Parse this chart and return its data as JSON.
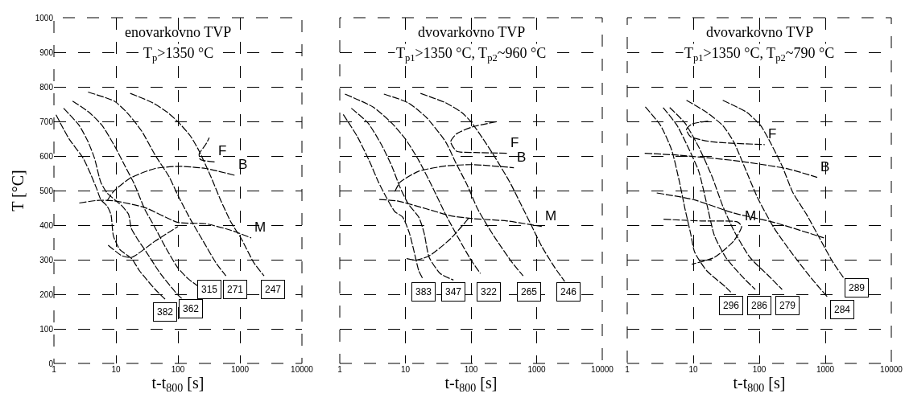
{
  "chart_data": [
    {
      "type": "line",
      "title": "enovarkovno TVP",
      "subtitle": "T$_{p}$>1350 °C",
      "xlabel": "t-t$_{800}$ [s]",
      "ylabel": "T [°C]",
      "log": "x",
      "grid": true,
      "line_style": "dashed",
      "color": "#000000",
      "xlim": [
        1,
        10000
      ],
      "ylim": [
        0,
        1000
      ],
      "xticks": [
        1,
        10,
        100,
        1000,
        10000
      ],
      "yticks": [
        0,
        100,
        200,
        300,
        400,
        500,
        600,
        700,
        800,
        900,
        1000
      ],
      "series": [
        {
          "x": [
            1.08,
            1.76,
            2.95,
            3.9,
            4.9,
            5.7,
            7.2,
            8.3,
            9.1,
            11.5,
            18,
            24,
            43,
            62
          ],
          "values": [
            719,
            649,
            594,
            548,
            505,
            474,
            455,
            431,
            369,
            330,
            303,
            268,
            214,
            186
          ]
        },
        {
          "x": [
            1.43,
            2.56,
            3.55,
            4.5,
            5.7,
            7.2,
            9.5,
            12.6,
            16,
            17.6,
            22,
            31,
            52,
            100,
            115
          ],
          "values": [
            738,
            688,
            641,
            594,
            524,
            493,
            474,
            455,
            431,
            392,
            361,
            322,
            260,
            198,
            188
          ]
        },
        {
          "x": [
            2,
            3.7,
            6,
            9.5,
            14,
            20,
            29,
            43,
            62,
            100,
            146,
            220
          ],
          "values": [
            759,
            726,
            688,
            629,
            571,
            517,
            447,
            392,
            338,
            276,
            245,
            221
          ]
        },
        {
          "x": [
            3.55,
            9.5,
            15,
            26,
            43,
            72,
            100,
            160,
            255,
            410,
            595
          ],
          "values": [
            785,
            758,
            726,
            672,
            602,
            540,
            486,
            416,
            354,
            291,
            253
          ]
        },
        {
          "x": [
            17,
            39,
            68,
            100,
            160,
            220,
            340,
            495,
            720,
            1050,
            1680,
            2450
          ],
          "values": [
            781,
            754,
            726,
            699,
            657,
            614,
            540,
            470,
            408,
            361,
            291,
            253
          ]
        },
        {
          "name": "F",
          "x": [
            390,
            230,
            220,
            280,
            320
          ],
          "values": [
            583,
            590,
            606,
            633,
            653
          ]
        },
        {
          "name": "B",
          "x": [
            7.2,
            9.1,
            17,
            43,
            110,
            280,
            830
          ],
          "values": [
            470,
            497,
            536,
            564,
            570,
            564,
            544
          ]
        },
        {
          "name": "M",
          "x": [
            2.56,
            5.4,
            9.5,
            29,
            100,
            280,
            720,
            1520
          ],
          "values": [
            464,
            472,
            470,
            451,
            408,
            404,
            385,
            363
          ]
        },
        {
          "x": [
            7.5,
            12.6,
            18,
            43,
            100
          ],
          "values": [
            342,
            311,
            307,
            354,
            396
          ]
        }
      ],
      "annotations": [
        {
          "text": "382",
          "x": 62,
          "y": 148
        },
        {
          "text": "362",
          "x": 160,
          "y": 158
        },
        {
          "text": "315",
          "x": 323,
          "y": 214
        },
        {
          "text": "271",
          "x": 830,
          "y": 214
        },
        {
          "text": "247",
          "x": 3400,
          "y": 214
        }
      ]
    },
    {
      "type": "line",
      "title": "dvovarkovno TVP",
      "subtitle": "T$_{p1}$>1350 °C, T$_{p2}$~960 °C",
      "xlabel": "t-t$_{800}$ [s]",
      "log": "x",
      "grid": true,
      "line_style": "dashed",
      "color": "#000000",
      "tick_labels": "x",
      "xlim": [
        1,
        10000
      ],
      "ylim": [
        0,
        1000
      ],
      "xticks": [
        1,
        10,
        100,
        1000,
        10000
      ],
      "yticks": [
        0,
        100,
        200,
        300,
        400,
        500,
        600,
        700,
        800,
        900,
        1000
      ],
      "series": [
        {
          "x": [
            1.13,
            1.84,
            2.8,
            3.9,
            5.2,
            6.9,
            9.1,
            11.5,
            13.9,
            16,
            18.4
          ],
          "values": [
            720,
            657,
            587,
            524,
            478,
            439,
            423,
            377,
            315,
            268,
            245
          ]
        },
        {
          "x": [
            1.5,
            2.7,
            4.3,
            6.2,
            8.3,
            11,
            16,
            19.3,
            23,
            34,
            54
          ],
          "values": [
            738,
            695,
            633,
            571,
            509,
            462,
            423,
            377,
            307,
            260,
            241
          ]
        },
        {
          "x": [
            1.2,
            3.2,
            6.2,
            10,
            16,
            26,
            41,
            65,
            100,
            139
          ],
          "values": [
            779,
            742,
            695,
            649,
            587,
            509,
            431,
            361,
            299,
            260
          ]
        },
        {
          "x": [
            4.7,
            11,
            21,
            41,
            59,
            87,
            126,
            222,
            427,
            623
          ],
          "values": [
            779,
            754,
            711,
            641,
            579,
            517,
            447,
            369,
            291,
            253
          ]
        },
        {
          "x": [
            17,
            41,
            72,
            100,
            153,
            222,
            391,
            570,
            828,
            1200,
            1910,
            2680
          ],
          "values": [
            781,
            754,
            726,
            699,
            649,
            602,
            524,
            462,
            400,
            338,
            276,
            237
          ]
        },
        {
          "name": "F",
          "x": [
            243,
            105,
            60,
            49,
            60,
            115,
            355
          ],
          "values": [
            699,
            684,
            664,
            641,
            614,
            610,
            608
          ]
        },
        {
          "name": "B",
          "x": [
            6.9,
            8.3,
            16,
            41,
            105,
            450
          ],
          "values": [
            497,
            524,
            556,
            571,
            575,
            566
          ]
        },
        {
          "name": "M",
          "x": [
            4,
            7.5,
            21,
            49,
            105,
            355,
            1200
          ],
          "values": [
            474,
            470,
            447,
            427,
            419,
            412,
            396
          ]
        },
        {
          "x": [
            10.4,
            14.5,
            23,
            49,
            95
          ],
          "values": [
            303,
            299,
            311,
            361,
            423
          ]
        }
      ],
      "annotations": [
        {
          "text": "383",
          "x": 19,
          "y": 206
        },
        {
          "text": "347",
          "x": 53,
          "y": 206
        },
        {
          "text": "322",
          "x": 184,
          "y": 206
        },
        {
          "text": "265",
          "x": 754,
          "y": 206
        },
        {
          "text": "246",
          "x": 3080,
          "y": 206
        }
      ]
    },
    {
      "type": "line",
      "title": "dvovarkovno TVP",
      "subtitle": "T$_{p1}$>1350 °C, T$_{p2}$~790 °C",
      "xlabel": "t-t$_{800}$ [s]",
      "log": "x",
      "grid": true,
      "line_style": "dashed",
      "color": "#000000",
      "tick_labels": "x",
      "xlim": [
        1,
        10000
      ],
      "ylim": [
        0,
        1000
      ],
      "xticks": [
        1,
        10,
        100,
        1000,
        10000
      ],
      "yticks": [
        0,
        100,
        200,
        300,
        400,
        500,
        600,
        700,
        800,
        900,
        1000
      ],
      "series": [
        {
          "x": [
            1.88,
            3.2,
            4.7,
            6.2,
            7.5,
            9.1,
            10.5,
            16,
            31,
            37
          ],
          "values": [
            742,
            688,
            618,
            524,
            447,
            377,
            322,
            268,
            221,
            206
          ]
        },
        {
          "x": [
            3.5,
            5.7,
            8.7,
            12.1,
            16,
            21,
            31,
            54,
            87
          ],
          "values": [
            740,
            688,
            618,
            556,
            462,
            369,
            307,
            253,
            214
          ]
        },
        {
          "x": [
            4.4,
            7.5,
            12.1,
            19.3,
            28,
            41,
            72,
            139,
            222
          ],
          "values": [
            740,
            695,
            626,
            540,
            455,
            385,
            307,
            253,
            214
          ]
        },
        {
          "x": [
            7.9,
            16,
            28,
            41,
            59,
            95,
            167,
            323,
            623,
            1100
          ],
          "values": [
            761,
            726,
            688,
            641,
            571,
            478,
            392,
            315,
            245,
            190
          ]
        },
        {
          "x": [
            28,
            65,
            105,
            153,
            222,
            323,
            520,
            826,
            1320,
            1940
          ],
          "values": [
            761,
            726,
            688,
            633,
            571,
            494,
            431,
            361,
            291,
            245
          ]
        },
        {
          "name": "F",
          "x": [
            16.8,
            9.5,
            7.9,
            9.1,
            19.3,
            121
          ],
          "values": [
            701,
            692,
            676,
            656,
            641,
            633
          ]
        },
        {
          "name": "B",
          "x": [
            1.84,
            6.2,
            41,
            268,
            755
          ],
          "values": [
            608,
            602,
            587,
            563,
            538
          ]
        },
        {
          "x": [
            2.8,
            10,
            41,
            167,
            955
          ],
          "values": [
            493,
            474,
            435,
            408,
            363
          ]
        },
        {
          "name": "M",
          "x": [
            3.55,
            13.2,
            47,
            54,
            41,
            21,
            9.5
          ],
          "values": [
            417,
            412,
            409,
            396,
            354,
            307,
            287
          ]
        }
      ],
      "annotations": [
        {
          "text": "296",
          "x": 37,
          "y": 167
        },
        {
          "text": "286",
          "x": 100,
          "y": 167
        },
        {
          "text": "279",
          "x": 268,
          "y": 167
        },
        {
          "text": "284",
          "x": 1820,
          "y": 156
        },
        {
          "text": "289",
          "x": 2950,
          "y": 218
        }
      ]
    }
  ]
}
